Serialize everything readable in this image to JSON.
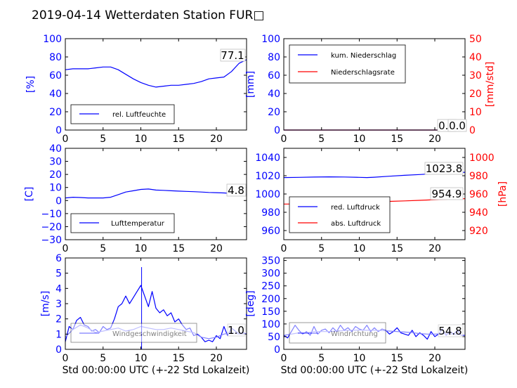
{
  "figure_title": "2019-04-14 Wetterdaten Station FUR□",
  "colors": {
    "blue": "#0000ff",
    "red": "#ff0000",
    "light_blue": "#7f7fff",
    "black": "#000000"
  },
  "chart_data": [
    {
      "id": "humidity",
      "type": "line",
      "xlim": [
        0,
        24
      ],
      "x_ticks": [
        "0",
        "5",
        "10",
        "15",
        "20"
      ],
      "xlabel": "",
      "ylim": [
        0,
        100
      ],
      "y_ticks": [
        "0",
        "20",
        "40",
        "60",
        "80",
        "100"
      ],
      "ylabel": "[%]",
      "legend_position": "lower-left",
      "value_label": "77.1",
      "series": [
        {
          "name": "rel. Luftfeuchte",
          "color": "#0000ff",
          "x": [
            0,
            1,
            2,
            3,
            4,
            5,
            6,
            7,
            8,
            9,
            10,
            11,
            12,
            13,
            14,
            15,
            16,
            17,
            18,
            19,
            20,
            21,
            22,
            23,
            24
          ],
          "y": [
            66,
            67,
            67,
            67,
            68,
            69,
            69,
            66,
            61,
            56,
            52,
            49,
            47,
            48,
            49,
            49,
            50,
            51,
            53,
            56,
            57,
            58,
            64,
            73,
            77
          ]
        }
      ]
    },
    {
      "id": "precipitation",
      "type": "line",
      "xlim": [
        0,
        24
      ],
      "x_ticks": [
        "0",
        "5",
        "10",
        "15",
        "20"
      ],
      "xlabel": "",
      "ylim": [
        0,
        100
      ],
      "y_ticks": [
        "0",
        "20",
        "40",
        "60",
        "80",
        "100"
      ],
      "ylabel": "[mm]",
      "y2lim": [
        0,
        50
      ],
      "y2_ticks": [
        "0",
        "10",
        "20",
        "30",
        "40",
        "50"
      ],
      "y2label": "[mm/std]",
      "legend_position": "upper-left",
      "value_label": "0.0",
      "value_label_2": "0.0",
      "series": [
        {
          "name": "kum. Niederschlag",
          "color": "#0000ff",
          "x": [
            0,
            24
          ],
          "y": [
            0,
            0
          ]
        },
        {
          "name": "Niederschlagsrate",
          "color": "#ff0000",
          "axis": "right",
          "x": [
            0,
            24
          ],
          "y": [
            0,
            0
          ]
        }
      ]
    },
    {
      "id": "temperature",
      "type": "line",
      "xlim": [
        0,
        24
      ],
      "x_ticks": [
        "0",
        "5",
        "10",
        "15",
        "20"
      ],
      "xlabel": "",
      "ylim": [
        -30,
        40
      ],
      "y_ticks": [
        "−30",
        "−20",
        "−10",
        "0",
        "10",
        "20",
        "30",
        "40"
      ],
      "ylabel": "[C]",
      "legend_position": "lower-left",
      "value_label": "4.8",
      "series": [
        {
          "name": "Lufttemperatur",
          "color": "#0000ff",
          "x": [
            0,
            1,
            2,
            3,
            4,
            5,
            6,
            7,
            8,
            9,
            10,
            11,
            12,
            13,
            14,
            15,
            16,
            17,
            18,
            19,
            20,
            21,
            22,
            23,
            24
          ],
          "y": [
            2.0,
            2.5,
            2.3,
            2.0,
            2.0,
            2.0,
            2.5,
            4.5,
            6.5,
            7.5,
            8.5,
            8.8,
            8.0,
            7.8,
            7.5,
            7.2,
            7.0,
            6.8,
            6.5,
            6.2,
            6.0,
            5.8,
            5.5,
            5.0,
            4.8
          ]
        }
      ]
    },
    {
      "id": "pressure",
      "type": "line",
      "xlim": [
        0,
        24
      ],
      "x_ticks": [
        "0",
        "5",
        "10",
        "15",
        "20"
      ],
      "xlabel": "",
      "ylim": [
        950,
        1050
      ],
      "y_ticks": [
        "960",
        "980",
        "1000",
        "1020",
        "1040"
      ],
      "ylabel": "",
      "y2lim": [
        910,
        1010
      ],
      "y2_ticks": [
        "920",
        "940",
        "960",
        "980",
        "1000"
      ],
      "y2label": "[hPa]",
      "legend_position": "lower-left",
      "value_label": "1023.8",
      "value_label_2": "954.9",
      "series": [
        {
          "name": "red. Luftdruck",
          "color": "#0000ff",
          "x": [
            0,
            2,
            4,
            6,
            8,
            10,
            11,
            12,
            14,
            16,
            18,
            20,
            22,
            24
          ],
          "y": [
            1018.0,
            1018.2,
            1018.5,
            1018.8,
            1018.6,
            1018.2,
            1018.0,
            1018.4,
            1019.5,
            1020.5,
            1021.3,
            1022.3,
            1023.1,
            1023.8
          ]
        },
        {
          "name": "abs. Luftdruck",
          "color": "#ff0000",
          "axis": "right",
          "x": [
            0,
            2,
            4,
            6,
            8,
            10,
            12,
            14,
            16,
            18,
            20,
            22,
            24
          ],
          "y": [
            949.0,
            949.1,
            949.4,
            949.8,
            950.2,
            950.7,
            951.3,
            951.9,
            952.5,
            953.1,
            953.8,
            954.4,
            954.9
          ]
        }
      ]
    },
    {
      "id": "windspeed",
      "type": "line",
      "xlim": [
        0,
        24
      ],
      "x_ticks": [
        "0",
        "5",
        "10",
        "15",
        "20"
      ],
      "xlabel": "Std 00:00:00 UTC (+-22 Std Lokalzeit)",
      "ylim": [
        0,
        6
      ],
      "y_ticks": [
        "0",
        "1",
        "2",
        "3",
        "4",
        "5",
        "6"
      ],
      "ylabel": "[m/s]",
      "legend_position": "lower-center",
      "value_label": "1.0",
      "series": [
        {
          "name": "Windgeschwindigkeit",
          "color": "#0000ff",
          "x": [
            0,
            0.5,
            1,
            1.5,
            2,
            2.5,
            3,
            3.5,
            4,
            4.5,
            5,
            5.5,
            6,
            6.5,
            7,
            7.5,
            8,
            8.5,
            9,
            9.5,
            10,
            10.5,
            11,
            11.5,
            12,
            12.5,
            13,
            13.5,
            14,
            14.5,
            15,
            15.5,
            16,
            16.5,
            17,
            17.5,
            18,
            18.5,
            19,
            19.5,
            20,
            20.5,
            21,
            21.5,
            22,
            22.5,
            23,
            23.5,
            24
          ],
          "y": [
            0.5,
            1.5,
            1.3,
            1.9,
            2.1,
            1.6,
            1.5,
            1.2,
            1.3,
            1.1,
            1.5,
            1.3,
            1.4,
            2.0,
            2.8,
            3.0,
            3.5,
            3.0,
            3.4,
            3.8,
            4.2,
            3.5,
            2.8,
            3.8,
            2.7,
            2.4,
            2.6,
            2.2,
            2.4,
            1.8,
            2.0,
            1.6,
            1.3,
            1.4,
            0.9,
            1.0,
            0.8,
            0.5,
            0.6,
            0.5,
            0.9,
            0.7,
            1.5,
            0.9,
            1.4,
            1.2,
            1.0,
            1.1,
            1.0
          ]
        },
        {
          "name": "Windgeschwindigkeit (gemittelt)",
          "color": "#7f7fff",
          "x": [
            0,
            1,
            2,
            3,
            4,
            5,
            6,
            7,
            8,
            9,
            10,
            11,
            12,
            13,
            14,
            15,
            16,
            17,
            18,
            19,
            20,
            21,
            22,
            23,
            24
          ],
          "y": [
            0.8,
            1.3,
            1.6,
            1.4,
            1.1,
            1.2,
            1.3,
            1.4,
            1.2,
            1.3,
            1.5,
            1.4,
            1.3,
            1.3,
            1.4,
            1.3,
            1.2,
            1.1,
            0.8,
            0.7,
            0.8,
            1.0,
            1.1,
            1.0,
            1.0
          ]
        }
      ],
      "annotations": [
        {
          "x": 10.1,
          "y": 5.4,
          "kind": "gust-peak"
        }
      ]
    },
    {
      "id": "winddirection",
      "type": "line",
      "xlim": [
        0,
        24
      ],
      "x_ticks": [
        "0",
        "5",
        "10",
        "15",
        "20"
      ],
      "xlabel": "Std 00:00:00 UTC (+-22 Std Lokalzeit)",
      "ylim": [
        0,
        360
      ],
      "y_ticks": [
        "0",
        "50",
        "100",
        "150",
        "200",
        "250",
        "300",
        "350"
      ],
      "ylabel": "[deg]",
      "legend_position": "lower-left",
      "value_label": "54.8",
      "series": [
        {
          "name": "Windrichtung",
          "color": "#0000ff",
          "x": [
            0,
            0.5,
            1,
            1.5,
            2,
            2.5,
            3,
            3.5,
            4,
            4.5,
            5,
            5.5,
            6,
            6.5,
            7,
            7.5,
            8,
            8.5,
            9,
            9.5,
            10,
            10.5,
            11,
            11.5,
            12,
            12.5,
            13,
            13.5,
            14,
            14.5,
            15,
            15.5,
            16,
            16.5,
            17,
            17.5,
            18,
            18.5,
            19,
            19.5,
            20,
            20.5,
            21,
            21.5,
            22,
            22.5,
            23,
            23.5,
            24
          ],
          "y": [
            55,
            45,
            70,
            95,
            75,
            60,
            70,
            55,
            90,
            60,
            75,
            80,
            65,
            85,
            70,
            95,
            75,
            85,
            70,
            90,
            80,
            75,
            95,
            70,
            85,
            70,
            80,
            75,
            60,
            70,
            85,
            65,
            60,
            55,
            75,
            50,
            65,
            55,
            40,
            70,
            50,
            60,
            80,
            55,
            70,
            60,
            75,
            55,
            55
          ]
        },
        {
          "name": "Windrichtung (gemittelt)",
          "color": "#7f7fff",
          "x": [
            0,
            1,
            2,
            3,
            4,
            5,
            6,
            7,
            8,
            9,
            10,
            11,
            12,
            13,
            14,
            15,
            16,
            17,
            18,
            19,
            20,
            21,
            22,
            23,
            24
          ],
          "y": [
            55,
            60,
            65,
            65,
            70,
            70,
            70,
            72,
            74,
            75,
            76,
            75,
            75,
            74,
            72,
            70,
            68,
            66,
            62,
            60,
            60,
            62,
            60,
            58,
            56
          ]
        }
      ]
    }
  ]
}
